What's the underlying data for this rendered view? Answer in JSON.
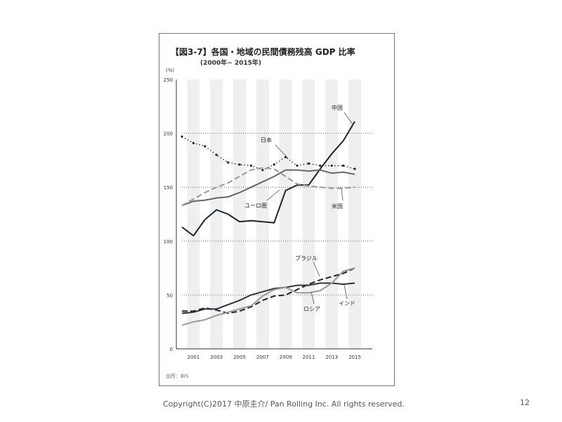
{
  "chart_data": {
    "type": "line",
    "title": "【図3-7】各国・地域の民間債務残高 GDP 比率",
    "subtitle": "(2000年~ 2015年)",
    "ylabel": "(%)",
    "ylim": [
      0,
      250
    ],
    "yticks": [
      "0",
      "50",
      "100",
      "150",
      "200",
      "250"
    ],
    "x": [
      2000,
      2001,
      2002,
      2003,
      2004,
      2005,
      2006,
      2007,
      2008,
      2009,
      2010,
      2011,
      2012,
      2013,
      2014,
      2015
    ],
    "xticks": [
      "2001",
      "2003",
      "2005",
      "2007",
      "2009",
      "2011",
      "2013",
      "2015"
    ],
    "grid": "dotted at 50,100,150,200; shaded alternating year bands",
    "series": [
      {
        "name": "中国",
        "style": "solid",
        "color": "#222222",
        "values": [
          113,
          105,
          120,
          129,
          125,
          118,
          119,
          118,
          117,
          147,
          152,
          152,
          167,
          181,
          193,
          211
        ]
      },
      {
        "name": "日本",
        "style": "dotted",
        "color": "#222222",
        "values": [
          197,
          191,
          188,
          180,
          173,
          171,
          170,
          166,
          171,
          178,
          170,
          172,
          170,
          170,
          170,
          167
        ]
      },
      {
        "name": "ユーロ圏",
        "style": "solid",
        "color": "#666666",
        "values": [
          133,
          137,
          138,
          140,
          141,
          145,
          150,
          155,
          160,
          166,
          166,
          165,
          166,
          163,
          164,
          162
        ]
      },
      {
        "name": "米国",
        "style": "dashed",
        "color": "#999999",
        "values": [
          133,
          139,
          145,
          150,
          154,
          160,
          166,
          168,
          167,
          160,
          153,
          151,
          150,
          149,
          149,
          150
        ]
      },
      {
        "name": "ブラジル",
        "style": "dashed",
        "color": "#222222",
        "values": [
          35,
          35,
          38,
          36,
          33,
          35,
          39,
          45,
          49,
          50,
          55,
          60,
          64,
          67,
          70,
          75
        ]
      },
      {
        "name": "インド",
        "style": "solid",
        "color": "#333333",
        "values": [
          33,
          34,
          37,
          37,
          41,
          45,
          50,
          53,
          56,
          57,
          59,
          59,
          61,
          61,
          60,
          61
        ]
      },
      {
        "name": "ロシア",
        "style": "solid",
        "color": "#999999",
        "values": [
          22,
          25,
          27,
          31,
          34,
          37,
          40,
          49,
          55,
          57,
          52,
          52,
          54,
          61,
          72,
          75
        ]
      }
    ],
    "source": "出所：BIS"
  },
  "footer": "Copyright(C)2017 中原圭介/ Pan Rolling Inc. All rights reserved.",
  "page_number": "12"
}
